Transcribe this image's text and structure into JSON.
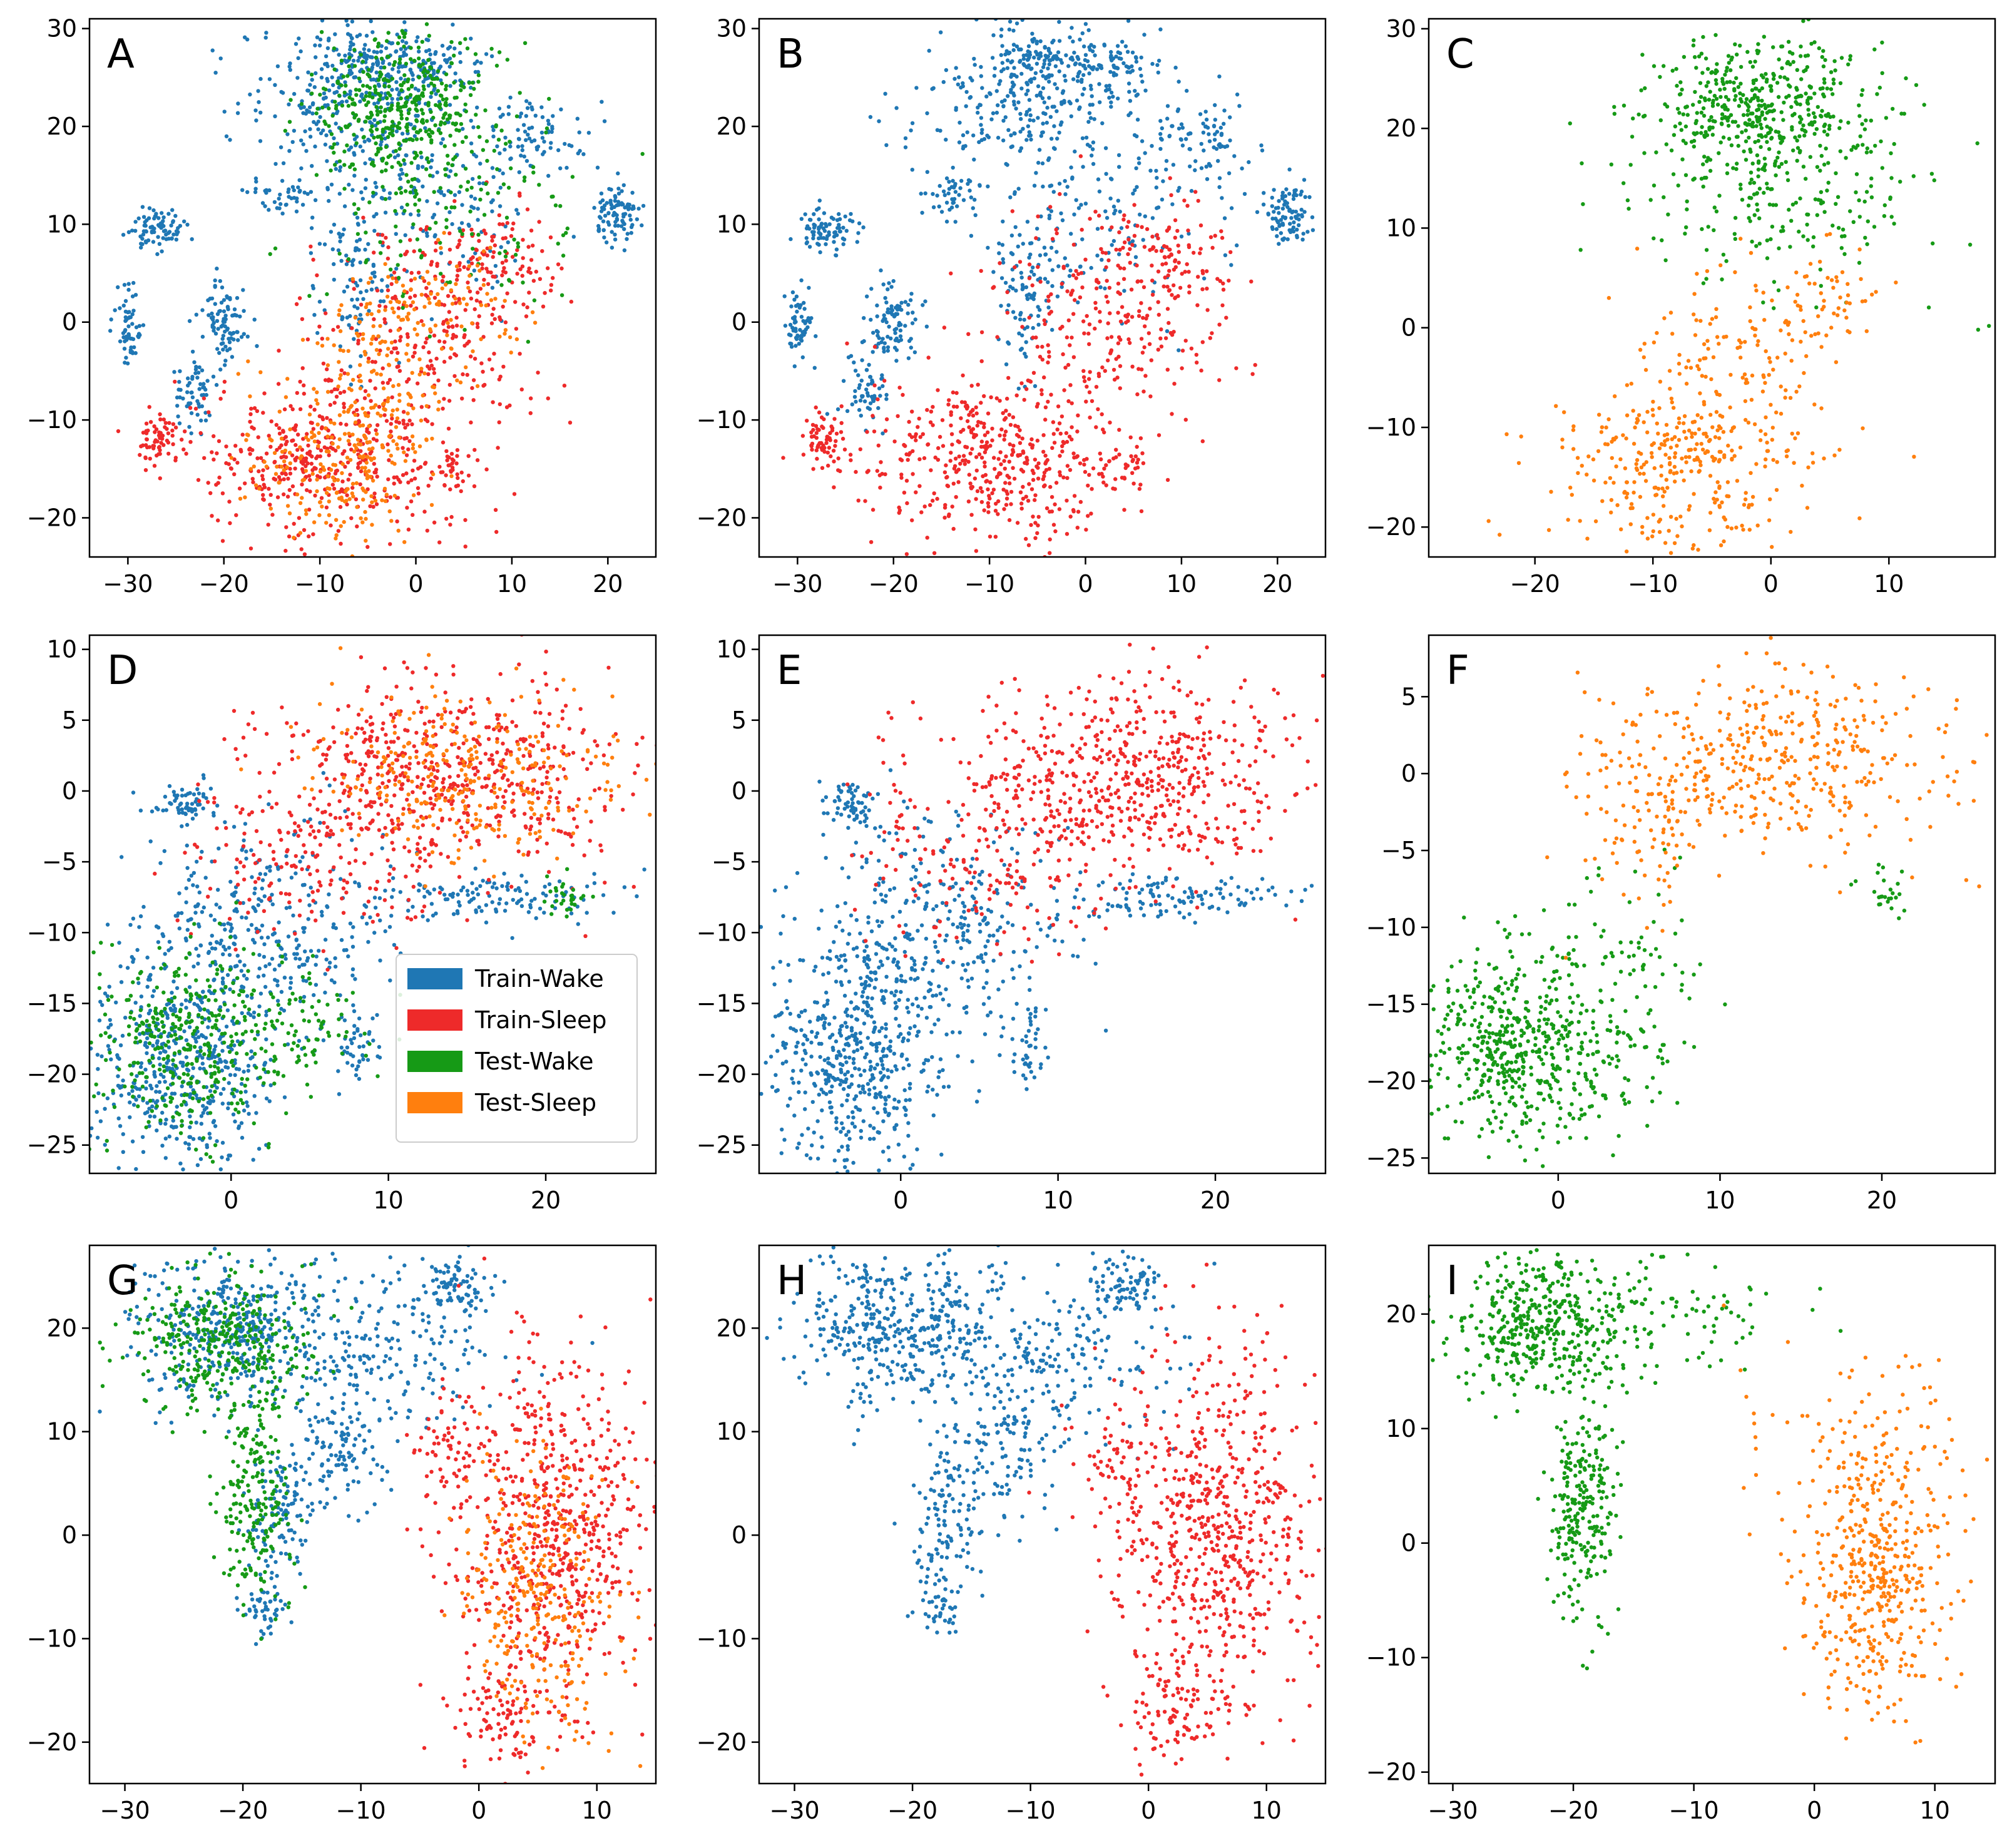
{
  "figure": {
    "colors": {
      "train_wake": "#1f77b4",
      "train_sleep": "#ee2a2a",
      "test_wake": "#169a16",
      "test_sleep": "#ff7f0e"
    },
    "legend": {
      "panel": "D",
      "entries": [
        {
          "label": "Train-Wake",
          "key": "train_wake"
        },
        {
          "label": "Train-Sleep",
          "key": "train_sleep"
        },
        {
          "label": "Test-Wake",
          "key": "test_wake"
        },
        {
          "label": "Test-Sleep",
          "key": "test_sleep"
        }
      ]
    }
  },
  "chart_data": [
    {
      "panel": "A",
      "type": "scatter",
      "title": "",
      "xlabel": "",
      "ylabel": "",
      "xlim": [
        -34,
        25
      ],
      "ylim": [
        -24,
        31
      ],
      "xticks": [
        -30,
        -20,
        -10,
        0,
        10,
        20
      ],
      "yticks": [
        -20,
        -10,
        0,
        10,
        20,
        30
      ],
      "series_shown": [
        "train_wake",
        "train_sleep",
        "test_wake",
        "test_sleep"
      ],
      "clusters": {
        "train_wake": [
          {
            "cx": -6,
            "cy": 23,
            "sx": 6,
            "sy": 4,
            "n": 320
          },
          {
            "cx": -5,
            "cy": 27,
            "sx": 2,
            "sy": 1.2,
            "n": 80
          },
          {
            "cx": 2,
            "cy": 26,
            "sx": 2.5,
            "sy": 1.5,
            "n": 70
          },
          {
            "cx": 12,
            "cy": 19,
            "sx": 3,
            "sy": 2,
            "n": 80
          },
          {
            "cx": 21,
            "cy": 11,
            "sx": 1.3,
            "sy": 1.5,
            "n": 90
          },
          {
            "cx": -27,
            "cy": 9.5,
            "sx": 1.5,
            "sy": 1,
            "n": 80
          },
          {
            "cx": -30,
            "cy": 0,
            "sx": 0.7,
            "sy": 1.8,
            "n": 60
          },
          {
            "cx": -20,
            "cy": 0,
            "sx": 1.2,
            "sy": 2,
            "n": 90
          },
          {
            "cx": -23,
            "cy": -7,
            "sx": 1.2,
            "sy": 2,
            "n": 60
          },
          {
            "cx": -14,
            "cy": 13,
            "sx": 1.5,
            "sy": 1,
            "n": 40
          },
          {
            "cx": -6,
            "cy": 4,
            "sx": 2,
            "sy": 4,
            "n": 100
          },
          {
            "cx": 2,
            "cy": 12,
            "sx": 7,
            "sy": 5,
            "n": 150
          }
        ],
        "train_sleep": [
          {
            "cx": -10,
            "cy": -14,
            "sx": 7,
            "sy": 4,
            "n": 450
          },
          {
            "cx": 2,
            "cy": 0,
            "sx": 6,
            "sy": 6,
            "n": 260
          },
          {
            "cx": -27,
            "cy": -12,
            "sx": 1,
            "sy": 1.3,
            "n": 60
          },
          {
            "cx": 9,
            "cy": 6,
            "sx": 3,
            "sy": 3,
            "n": 80
          },
          {
            "cx": 4,
            "cy": -15,
            "sx": 1.5,
            "sy": 1,
            "n": 30
          }
        ],
        "test_wake": [
          {
            "cx": -1,
            "cy": 22,
            "sx": 5,
            "sy": 3.5,
            "n": 400
          },
          {
            "cx": 3,
            "cy": 12,
            "sx": 7,
            "sy": 5,
            "n": 150
          }
        ],
        "test_sleep": [
          {
            "cx": -8,
            "cy": -14,
            "sx": 5,
            "sy": 4,
            "n": 220
          },
          {
            "cx": -3,
            "cy": -4,
            "sx": 4,
            "sy": 5,
            "n": 150
          },
          {
            "cx": 5,
            "cy": 3,
            "sx": 4,
            "sy": 3,
            "n": 60
          }
        ]
      }
    },
    {
      "panel": "B",
      "type": "scatter",
      "title": "",
      "xlabel": "",
      "ylabel": "",
      "xlim": [
        -34,
        25
      ],
      "ylim": [
        -24,
        31
      ],
      "xticks": [
        -30,
        -20,
        -10,
        0,
        10,
        20
      ],
      "yticks": [
        -20,
        -10,
        0,
        10,
        20,
        30
      ],
      "series_shown": [
        "train_wake",
        "train_sleep"
      ],
      "clusters": {
        "train_wake": [
          {
            "cx": -6,
            "cy": 23,
            "sx": 6,
            "sy": 4,
            "n": 300
          },
          {
            "cx": -5,
            "cy": 27,
            "sx": 2,
            "sy": 1.2,
            "n": 80
          },
          {
            "cx": 2,
            "cy": 26,
            "sx": 2.5,
            "sy": 1.5,
            "n": 70
          },
          {
            "cx": 12,
            "cy": 19,
            "sx": 3,
            "sy": 2,
            "n": 80
          },
          {
            "cx": 21,
            "cy": 11,
            "sx": 1.3,
            "sy": 1.5,
            "n": 90
          },
          {
            "cx": -27,
            "cy": 9.5,
            "sx": 1.5,
            "sy": 1,
            "n": 80
          },
          {
            "cx": -30,
            "cy": 0,
            "sx": 0.7,
            "sy": 1.8,
            "n": 60
          },
          {
            "cx": -20,
            "cy": 0,
            "sx": 1.2,
            "sy": 2,
            "n": 90
          },
          {
            "cx": -23,
            "cy": -7,
            "sx": 1.2,
            "sy": 2,
            "n": 60
          },
          {
            "cx": -14,
            "cy": 13,
            "sx": 1.5,
            "sy": 1,
            "n": 40
          },
          {
            "cx": -6,
            "cy": 4,
            "sx": 2,
            "sy": 4,
            "n": 100
          },
          {
            "cx": 2,
            "cy": 12,
            "sx": 7,
            "sy": 5,
            "n": 150
          }
        ],
        "train_sleep": [
          {
            "cx": -10,
            "cy": -14,
            "sx": 7,
            "sy": 4,
            "n": 450
          },
          {
            "cx": 2,
            "cy": 0,
            "sx": 6,
            "sy": 6,
            "n": 260
          },
          {
            "cx": -27,
            "cy": -12,
            "sx": 1,
            "sy": 1.3,
            "n": 60
          },
          {
            "cx": 9,
            "cy": 6,
            "sx": 3,
            "sy": 3,
            "n": 80
          },
          {
            "cx": 4,
            "cy": -15,
            "sx": 1.5,
            "sy": 1,
            "n": 30
          }
        ]
      }
    },
    {
      "panel": "C",
      "type": "scatter",
      "title": "",
      "xlabel": "",
      "ylabel": "",
      "xlim": [
        -29,
        19
      ],
      "ylim": [
        -23,
        31
      ],
      "xticks": [
        -20,
        -10,
        0,
        10
      ],
      "yticks": [
        -20,
        -10,
        0,
        10,
        20,
        30
      ],
      "series_shown": [
        "test_wake",
        "test_sleep"
      ],
      "clusters": {
        "test_wake": [
          {
            "cx": -1,
            "cy": 22,
            "sx": 5,
            "sy": 3.5,
            "n": 450
          },
          {
            "cx": 2,
            "cy": 12,
            "sx": 7,
            "sy": 5,
            "n": 200
          }
        ],
        "test_sleep": [
          {
            "cx": -8,
            "cy": -14,
            "sx": 5,
            "sy": 4,
            "n": 280
          },
          {
            "cx": -3,
            "cy": -5,
            "sx": 4,
            "sy": 5,
            "n": 160
          },
          {
            "cx": 4,
            "cy": 3,
            "sx": 3,
            "sy": 3,
            "n": 60
          }
        ]
      }
    },
    {
      "panel": "D",
      "type": "scatter",
      "title": "",
      "xlabel": "",
      "ylabel": "",
      "xlim": [
        -9,
        27
      ],
      "ylim": [
        -27,
        11
      ],
      "xticks": [
        0,
        10,
        20
      ],
      "yticks": [
        -25,
        -20,
        -15,
        -10,
        -5,
        0,
        5,
        10
      ],
      "series_shown": [
        "train_wake",
        "train_sleep",
        "test_wake",
        "test_sleep"
      ],
      "clusters": {
        "train_wake": [
          {
            "cx": -3,
            "cy": -19,
            "sx": 3,
            "sy": 4,
            "n": 500
          },
          {
            "cx": 2,
            "cy": -10,
            "sx": 4,
            "sy": 4,
            "n": 350
          },
          {
            "cx": -3,
            "cy": -1,
            "sx": 1,
            "sy": 0.7,
            "n": 60
          },
          {
            "cx": 17,
            "cy": -7.5,
            "sx": 4,
            "sy": 0.8,
            "n": 120
          },
          {
            "cx": 8,
            "cy": -18,
            "sx": 0.6,
            "sy": 1.2,
            "n": 40
          }
        ],
        "train_sleep": [
          {
            "cx": 14,
            "cy": 1,
            "sx": 6,
            "sy": 3.5,
            "n": 600
          },
          {
            "cx": 5,
            "cy": -5,
            "sx": 4,
            "sy": 3,
            "n": 150
          }
        ],
        "test_wake": [
          {
            "cx": -3,
            "cy": -18,
            "sx": 3,
            "sy": 3.5,
            "n": 350
          },
          {
            "cx": 4,
            "cy": -17,
            "sx": 2.5,
            "sy": 2,
            "n": 100
          },
          {
            "cx": 21,
            "cy": -7.5,
            "sx": 0.8,
            "sy": 0.8,
            "n": 30
          }
        ],
        "test_sleep": [
          {
            "cx": 15,
            "cy": 1,
            "sx": 5,
            "sy": 3,
            "n": 300
          }
        ]
      }
    },
    {
      "panel": "E",
      "type": "scatter",
      "title": "",
      "xlabel": "",
      "ylabel": "",
      "xlim": [
        -9,
        27
      ],
      "ylim": [
        -27,
        11
      ],
      "xticks": [
        0,
        10,
        20
      ],
      "yticks": [
        -25,
        -20,
        -15,
        -10,
        -5,
        0,
        5,
        10
      ],
      "series_shown": [
        "train_wake",
        "train_sleep"
      ],
      "clusters": {
        "train_wake": [
          {
            "cx": -3,
            "cy": -19,
            "sx": 3,
            "sy": 4,
            "n": 500
          },
          {
            "cx": 2,
            "cy": -10,
            "sx": 4,
            "sy": 4,
            "n": 350
          },
          {
            "cx": -3,
            "cy": -1,
            "sx": 1,
            "sy": 0.7,
            "n": 60
          },
          {
            "cx": 17,
            "cy": -7.5,
            "sx": 4,
            "sy": 0.8,
            "n": 120
          },
          {
            "cx": 8,
            "cy": -18,
            "sx": 0.6,
            "sy": 1.2,
            "n": 40
          }
        ],
        "train_sleep": [
          {
            "cx": 14,
            "cy": 1,
            "sx": 6,
            "sy": 3.5,
            "n": 600
          },
          {
            "cx": 5,
            "cy": -5,
            "sx": 4,
            "sy": 3,
            "n": 150
          }
        ]
      }
    },
    {
      "panel": "F",
      "type": "scatter",
      "title": "",
      "xlabel": "",
      "ylabel": "",
      "xlim": [
        -8,
        27
      ],
      "ylim": [
        -26,
        9
      ],
      "xticks": [
        0,
        10,
        20
      ],
      "yticks": [
        -25,
        -20,
        -15,
        -10,
        -5,
        0,
        5
      ],
      "series_shown": [
        "test_wake",
        "test_sleep"
      ],
      "clusters": {
        "test_wake": [
          {
            "cx": -3,
            "cy": -18,
            "sx": 2.5,
            "sy": 3,
            "n": 450
          },
          {
            "cx": 3,
            "cy": -15,
            "sx": 3,
            "sy": 4,
            "n": 180
          },
          {
            "cx": 20,
            "cy": -7.5,
            "sx": 0.8,
            "sy": 0.8,
            "n": 25
          }
        ],
        "test_sleep": [
          {
            "cx": 14,
            "cy": 1,
            "sx": 5.5,
            "sy": 3,
            "n": 420
          },
          {
            "cx": 6,
            "cy": -4,
            "sx": 3,
            "sy": 2.5,
            "n": 80
          }
        ]
      }
    },
    {
      "panel": "G",
      "type": "scatter",
      "title": "",
      "xlabel": "",
      "ylabel": "",
      "xlim": [
        -33,
        15
      ],
      "ylim": [
        -24,
        28
      ],
      "xticks": [
        -30,
        -20,
        -10,
        0,
        10
      ],
      "yticks": [
        -20,
        -10,
        0,
        10,
        20
      ],
      "series_shown": [
        "train_wake",
        "train_sleep",
        "test_wake",
        "test_sleep"
      ],
      "clusters": {
        "train_wake": [
          {
            "cx": -22,
            "cy": 20,
            "sx": 4,
            "sy": 3.5,
            "n": 350
          },
          {
            "cx": -10,
            "cy": 18,
            "sx": 6,
            "sy": 4,
            "n": 250
          },
          {
            "cx": -2,
            "cy": 24,
            "sx": 1.5,
            "sy": 1.5,
            "n": 80
          },
          {
            "cx": -17,
            "cy": 2,
            "sx": 1.5,
            "sy": 4,
            "n": 120
          },
          {
            "cx": -12,
            "cy": 8,
            "sx": 2,
            "sy": 3,
            "n": 100
          },
          {
            "cx": -18,
            "cy": -7,
            "sx": 1,
            "sy": 1.5,
            "n": 40
          }
        ],
        "train_sleep": [
          {
            "cx": 6,
            "cy": 0,
            "sx": 4,
            "sy": 9,
            "n": 650
          },
          {
            "cx": 2,
            "cy": -17,
            "sx": 2,
            "sy": 2.5,
            "n": 80
          },
          {
            "cx": -3,
            "cy": 7,
            "sx": 1.5,
            "sy": 3,
            "n": 60
          }
        ],
        "test_wake": [
          {
            "cx": -22,
            "cy": 19,
            "sx": 4,
            "sy": 3.5,
            "n": 350
          },
          {
            "cx": -19,
            "cy": 3,
            "sx": 1.5,
            "sy": 5,
            "n": 200
          }
        ],
        "test_sleep": [
          {
            "cx": 5,
            "cy": -6,
            "sx": 3,
            "sy": 7,
            "n": 300
          }
        ]
      }
    },
    {
      "panel": "H",
      "type": "scatter",
      "title": "",
      "xlabel": "",
      "ylabel": "",
      "xlim": [
        -33,
        15
      ],
      "ylim": [
        -24,
        28
      ],
      "xticks": [
        -30,
        -20,
        -10,
        0,
        10
      ],
      "yticks": [
        -20,
        -10,
        0,
        10,
        20
      ],
      "series_shown": [
        "train_wake",
        "train_sleep"
      ],
      "clusters": {
        "train_wake": [
          {
            "cx": -22,
            "cy": 20,
            "sx": 4,
            "sy": 3.5,
            "n": 350
          },
          {
            "cx": -10,
            "cy": 18,
            "sx": 6,
            "sy": 4,
            "n": 250
          },
          {
            "cx": -2,
            "cy": 24,
            "sx": 1.5,
            "sy": 1.5,
            "n": 80
          },
          {
            "cx": -17,
            "cy": 2,
            "sx": 1.5,
            "sy": 4,
            "n": 120
          },
          {
            "cx": -12,
            "cy": 8,
            "sx": 2,
            "sy": 3,
            "n": 100
          },
          {
            "cx": -18,
            "cy": -7,
            "sx": 1,
            "sy": 1.5,
            "n": 40
          }
        ],
        "train_sleep": [
          {
            "cx": 6,
            "cy": 0,
            "sx": 4,
            "sy": 9,
            "n": 650
          },
          {
            "cx": 2,
            "cy": -17,
            "sx": 2,
            "sy": 2.5,
            "n": 80
          },
          {
            "cx": -3,
            "cy": 7,
            "sx": 1.5,
            "sy": 3,
            "n": 60
          }
        ]
      }
    },
    {
      "panel": "I",
      "type": "scatter",
      "title": "",
      "xlabel": "",
      "ylabel": "",
      "xlim": [
        -32,
        15
      ],
      "ylim": [
        -21,
        26
      ],
      "xticks": [
        -30,
        -20,
        -10,
        0,
        10
      ],
      "yticks": [
        -20,
        -10,
        0,
        10,
        20
      ],
      "series_shown": [
        "test_wake",
        "test_sleep"
      ],
      "clusters": {
        "test_wake": [
          {
            "cx": -22,
            "cy": 19,
            "sx": 4,
            "sy": 3,
            "n": 450
          },
          {
            "cx": -19,
            "cy": 3,
            "sx": 1.5,
            "sy": 5,
            "n": 250
          },
          {
            "cx": -10,
            "cy": 20,
            "sx": 4,
            "sy": 2.5,
            "n": 60
          }
        ],
        "test_sleep": [
          {
            "cx": 5,
            "cy": -3,
            "sx": 3,
            "sy": 6,
            "n": 400
          },
          {
            "cx": 3,
            "cy": 8,
            "sx": 5,
            "sy": 5,
            "n": 120
          }
        ]
      }
    }
  ]
}
